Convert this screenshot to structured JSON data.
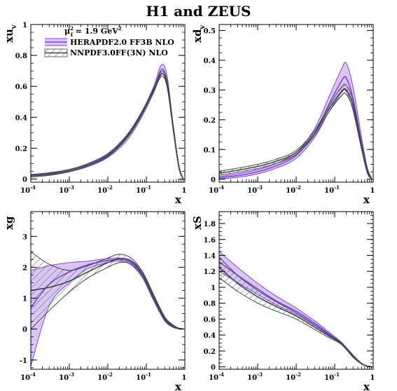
{
  "figure": {
    "title": "H1 and ZEUS",
    "scale_label": "μ",
    "scale_sub": "f",
    "scale_sup": "2",
    "scale_text": " = 1.9 GeV",
    "scale_unit_sup": "2"
  },
  "colors": {
    "hera_fill": "#d9c6f5",
    "hera_line": "#8a3ff0",
    "nnpdf_line": "#3d4a43",
    "nnpdf_hatch": "#3d4a43",
    "axis": "#000000"
  },
  "legend": [
    {
      "name": "HERAPDF2.0 FF3B NLO",
      "style": "solid-band"
    },
    {
      "name": "NNPDF3.0FF(3N) NLO",
      "style": "hatched-band"
    }
  ],
  "chart_data": [
    {
      "type": "area",
      "id": "xuv",
      "ylabel": "xu",
      "ylabel_sub": "v",
      "xlabel": "x",
      "xscale": "log",
      "xlim": [
        0.0001,
        1
      ],
      "ylim": [
        -0.02,
        1.0
      ],
      "xticks": [
        {
          "v": 0.0001,
          "base": "10",
          "exp": "-4"
        },
        {
          "v": 0.001,
          "base": "10",
          "exp": "-3"
        },
        {
          "v": 0.01,
          "base": "10",
          "exp": "-2"
        },
        {
          "v": 0.1,
          "base": "10",
          "exp": "-1"
        },
        {
          "v": 1,
          "base": "1",
          "exp": ""
        }
      ],
      "yticks": [
        {
          "v": 0,
          "label": "0"
        },
        {
          "v": 0.2,
          "label": "0.2"
        },
        {
          "v": 0.4,
          "label": "0.4"
        },
        {
          "v": 0.6,
          "label": "0.6"
        },
        {
          "v": 0.8,
          "label": "0.8"
        },
        {
          "v": 1,
          "label": "1"
        }
      ],
      "yminor": 0.05,
      "x": [
        0.0001,
        0.0003,
        0.001,
        0.003,
        0.01,
        0.03,
        0.07,
        0.15,
        0.25,
        0.35,
        0.5,
        0.7,
        0.9
      ],
      "series": [
        {
          "name": "HERAPDF2.0 FF3B NLO",
          "central": [
            0.025,
            0.035,
            0.055,
            0.09,
            0.15,
            0.26,
            0.4,
            0.57,
            0.71,
            0.62,
            0.33,
            0.08,
            0.003
          ],
          "upper": [
            0.03,
            0.042,
            0.063,
            0.1,
            0.16,
            0.275,
            0.415,
            0.59,
            0.74,
            0.66,
            0.35,
            0.09,
            0.004
          ],
          "lower": [
            0.02,
            0.028,
            0.047,
            0.08,
            0.14,
            0.245,
            0.385,
            0.55,
            0.68,
            0.59,
            0.31,
            0.07,
            0.002
          ]
        },
        {
          "name": "NNPDF3.0FF(3N) NLO",
          "central": [
            0.02,
            0.032,
            0.055,
            0.092,
            0.155,
            0.27,
            0.41,
            0.57,
            0.68,
            0.61,
            0.33,
            0.08,
            0.003
          ],
          "upper": [
            0.028,
            0.04,
            0.063,
            0.1,
            0.165,
            0.28,
            0.42,
            0.58,
            0.695,
            0.63,
            0.345,
            0.09,
            0.004
          ],
          "lower": [
            0.012,
            0.024,
            0.047,
            0.084,
            0.145,
            0.26,
            0.4,
            0.56,
            0.665,
            0.59,
            0.315,
            0.07,
            0.002
          ]
        }
      ]
    },
    {
      "type": "area",
      "id": "xdv",
      "ylabel": "xd",
      "ylabel_sub": "v",
      "xlabel": "x",
      "xscale": "log",
      "xlim": [
        0.0001,
        1
      ],
      "ylim": [
        -0.01,
        0.52
      ],
      "xticks": [
        {
          "v": 0.0001,
          "base": "10",
          "exp": "-4"
        },
        {
          "v": 0.001,
          "base": "10",
          "exp": "-3"
        },
        {
          "v": 0.01,
          "base": "10",
          "exp": "-2"
        },
        {
          "v": 0.1,
          "base": "10",
          "exp": "-1"
        },
        {
          "v": 1,
          "base": "1",
          "exp": ""
        }
      ],
      "yticks": [
        {
          "v": 0,
          "label": "0"
        },
        {
          "v": 0.1,
          "label": "0.1"
        },
        {
          "v": 0.2,
          "label": "0.2"
        },
        {
          "v": 0.3,
          "label": "0.3"
        },
        {
          "v": 0.4,
          "label": "0.4"
        },
        {
          "v": 0.5,
          "label": "0.5"
        }
      ],
      "yminor": 0.025,
      "x": [
        0.0001,
        0.0003,
        0.001,
        0.003,
        0.01,
        0.03,
        0.07,
        0.15,
        0.2,
        0.3,
        0.5,
        0.7,
        0.9
      ],
      "series": [
        {
          "name": "HERAPDF2.0 FF3B NLO",
          "central": [
            0.005,
            0.012,
            0.025,
            0.045,
            0.08,
            0.155,
            0.25,
            0.33,
            0.34,
            0.27,
            0.12,
            0.03,
            0.003
          ],
          "upper": [
            0.009,
            0.018,
            0.032,
            0.053,
            0.09,
            0.17,
            0.275,
            0.37,
            0.39,
            0.31,
            0.14,
            0.04,
            0.005
          ],
          "lower": [
            0.001,
            0.006,
            0.018,
            0.037,
            0.07,
            0.14,
            0.225,
            0.29,
            0.295,
            0.23,
            0.1,
            0.02,
            0.001
          ]
        },
        {
          "name": "NNPDF3.0FF(3N) NLO",
          "central": [
            0.02,
            0.03,
            0.043,
            0.06,
            0.09,
            0.155,
            0.235,
            0.295,
            0.3,
            0.25,
            0.11,
            0.03,
            0.003
          ],
          "upper": [
            0.027,
            0.037,
            0.05,
            0.067,
            0.097,
            0.163,
            0.245,
            0.31,
            0.315,
            0.265,
            0.12,
            0.035,
            0.005
          ],
          "lower": [
            0.013,
            0.023,
            0.036,
            0.053,
            0.083,
            0.147,
            0.225,
            0.28,
            0.285,
            0.235,
            0.1,
            0.025,
            0.001
          ]
        }
      ]
    },
    {
      "type": "area",
      "id": "xg",
      "ylabel": "xg",
      "ylabel_sub": "",
      "xlabel": "x",
      "xscale": "log",
      "xlim": [
        0.0001,
        1
      ],
      "ylim": [
        -1.3,
        3.8
      ],
      "xticks": [
        {
          "v": 0.0001,
          "base": "10",
          "exp": "-4"
        },
        {
          "v": 0.001,
          "base": "10",
          "exp": "-3"
        },
        {
          "v": 0.01,
          "base": "10",
          "exp": "-2"
        },
        {
          "v": 0.1,
          "base": "10",
          "exp": "-1"
        },
        {
          "v": 1,
          "base": "1",
          "exp": ""
        }
      ],
      "yticks": [
        {
          "v": -1,
          "label": "-1"
        },
        {
          "v": 0,
          "label": "0"
        },
        {
          "v": 1,
          "label": "1"
        },
        {
          "v": 2,
          "label": "2"
        },
        {
          "v": 3,
          "label": "3"
        }
      ],
      "yminor": 0.25,
      "x": [
        0.0001,
        0.0003,
        0.001,
        0.003,
        0.01,
        0.02,
        0.04,
        0.08,
        0.15,
        0.3,
        0.5,
        0.7,
        0.9
      ],
      "series": [
        {
          "name": "HERAPDF2.0 FF3B NLO",
          "central": [
            0.7,
            1.45,
            1.85,
            2.08,
            2.22,
            2.25,
            2.15,
            1.75,
            1.05,
            0.32,
            0.08,
            0.02,
            0.005
          ],
          "upper": [
            1.9,
            2.05,
            2.15,
            2.2,
            2.28,
            2.3,
            2.22,
            1.85,
            1.15,
            0.38,
            0.12,
            0.03,
            0.01
          ],
          "lower": [
            -1.2,
            0.75,
            1.5,
            1.95,
            2.15,
            2.2,
            2.08,
            1.65,
            0.95,
            0.26,
            0.05,
            0.01,
            0.0
          ]
        },
        {
          "name": "NNPDF3.0FF(3N) NLO",
          "central": [
            1.25,
            1.35,
            1.55,
            1.85,
            2.15,
            2.28,
            2.2,
            1.78,
            1.08,
            0.35,
            0.1,
            0.02,
            0.005
          ],
          "upper": [
            2.5,
            2.1,
            1.9,
            2.05,
            2.3,
            2.42,
            2.3,
            1.85,
            1.15,
            0.4,
            0.13,
            0.03,
            0.01
          ],
          "lower": [
            0.0,
            0.6,
            1.2,
            1.65,
            2.0,
            2.15,
            2.1,
            1.7,
            1.0,
            0.3,
            0.07,
            0.01,
            0.0
          ]
        }
      ]
    },
    {
      "type": "area",
      "id": "xS",
      "ylabel": "xS",
      "ylabel_sub": "",
      "xlabel": "x",
      "xscale": "log",
      "xlim": [
        0.0001,
        1
      ],
      "ylim": [
        -0.03,
        1.95
      ],
      "xticks": [
        {
          "v": 0.0001,
          "base": "10",
          "exp": "-4"
        },
        {
          "v": 0.001,
          "base": "10",
          "exp": "-3"
        },
        {
          "v": 0.01,
          "base": "10",
          "exp": "-2"
        },
        {
          "v": 0.1,
          "base": "10",
          "exp": "-1"
        },
        {
          "v": 1,
          "base": "1",
          "exp": ""
        }
      ],
      "yticks": [
        {
          "v": 0,
          "label": "0"
        },
        {
          "v": 0.2,
          "label": "0.2"
        },
        {
          "v": 0.4,
          "label": "0.4"
        },
        {
          "v": 0.6,
          "label": "0.6"
        },
        {
          "v": 0.8,
          "label": "0.8"
        },
        {
          "v": 1,
          "label": "1"
        },
        {
          "v": 1.2,
          "label": "1.2"
        },
        {
          "v": 1.4,
          "label": "1.4"
        },
        {
          "v": 1.6,
          "label": "1.6"
        },
        {
          "v": 1.8,
          "label": "1.8"
        }
      ],
      "yminor": 0.05,
      "x": [
        0.0001,
        0.0003,
        0.001,
        0.003,
        0.01,
        0.03,
        0.07,
        0.15,
        0.3,
        0.5,
        0.7,
        0.9
      ],
      "series": [
        {
          "name": "HERAPDF2.0 FF3B NLO",
          "central": [
            1.32,
            1.15,
            0.98,
            0.83,
            0.7,
            0.55,
            0.42,
            0.3,
            0.14,
            0.04,
            0.01,
            0.002
          ],
          "upper": [
            1.45,
            1.25,
            1.05,
            0.89,
            0.74,
            0.58,
            0.44,
            0.31,
            0.15,
            0.045,
            0.012,
            0.004
          ],
          "lower": [
            1.2,
            1.06,
            0.91,
            0.78,
            0.66,
            0.52,
            0.4,
            0.29,
            0.13,
            0.035,
            0.008,
            0.0
          ]
        },
        {
          "name": "NNPDF3.0FF(3N) NLO",
          "central": [
            1.25,
            1.05,
            0.88,
            0.76,
            0.64,
            0.5,
            0.39,
            0.29,
            0.13,
            0.04,
            0.01,
            0.002
          ],
          "upper": [
            1.38,
            1.15,
            0.96,
            0.82,
            0.68,
            0.53,
            0.41,
            0.3,
            0.14,
            0.045,
            0.012,
            0.004
          ],
          "lower": [
            1.12,
            0.95,
            0.8,
            0.7,
            0.6,
            0.47,
            0.37,
            0.28,
            0.12,
            0.035,
            0.008,
            0.0
          ]
        }
      ]
    }
  ]
}
